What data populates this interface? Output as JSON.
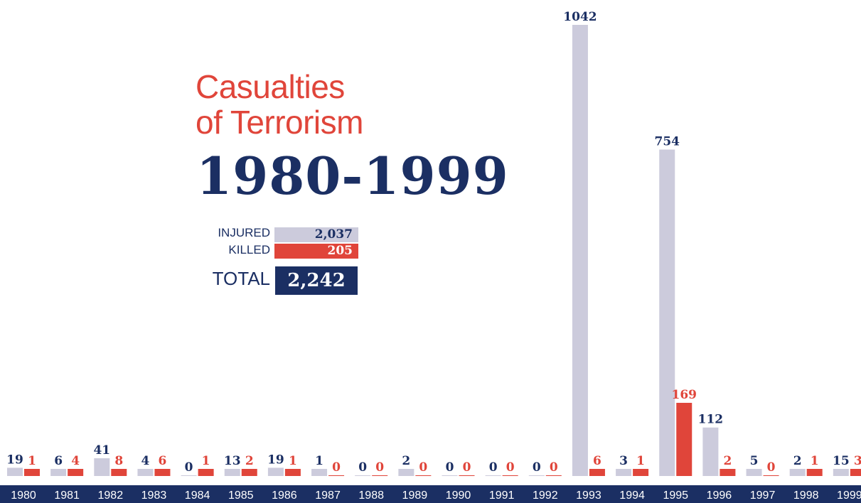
{
  "title": {
    "line1": "Casualties",
    "line2": "of Terrorism",
    "years": "1980-1999"
  },
  "summary": {
    "injured_label": "INJURED",
    "injured_value": "2,037",
    "killed_label": "KILLED",
    "killed_value": "205",
    "total_label": "TOTAL",
    "total_value": "2,242"
  },
  "colors": {
    "injured": "#cccbdc",
    "killed": "#e0453a",
    "navy": "#1b2f63"
  },
  "chart_data": {
    "type": "bar",
    "categories": [
      "1980",
      "1981",
      "1982",
      "1983",
      "1984",
      "1985",
      "1986",
      "1987",
      "1988",
      "1989",
      "1990",
      "1991",
      "1992",
      "1993",
      "1994",
      "1995",
      "1996",
      "1997",
      "1998",
      "1999"
    ],
    "series": [
      {
        "name": "INJURED",
        "values": [
          19,
          6,
          41,
          4,
          0,
          13,
          19,
          1,
          0,
          2,
          0,
          0,
          0,
          1042,
          3,
          754,
          112,
          5,
          2,
          15
        ]
      },
      {
        "name": "KILLED",
        "values": [
          1,
          4,
          8,
          6,
          1,
          2,
          1,
          0,
          0,
          0,
          0,
          0,
          0,
          6,
          1,
          169,
          2,
          0,
          1,
          3
        ]
      }
    ],
    "ylim": [
      0,
      1042
    ],
    "grid": false,
    "legend": "left"
  }
}
